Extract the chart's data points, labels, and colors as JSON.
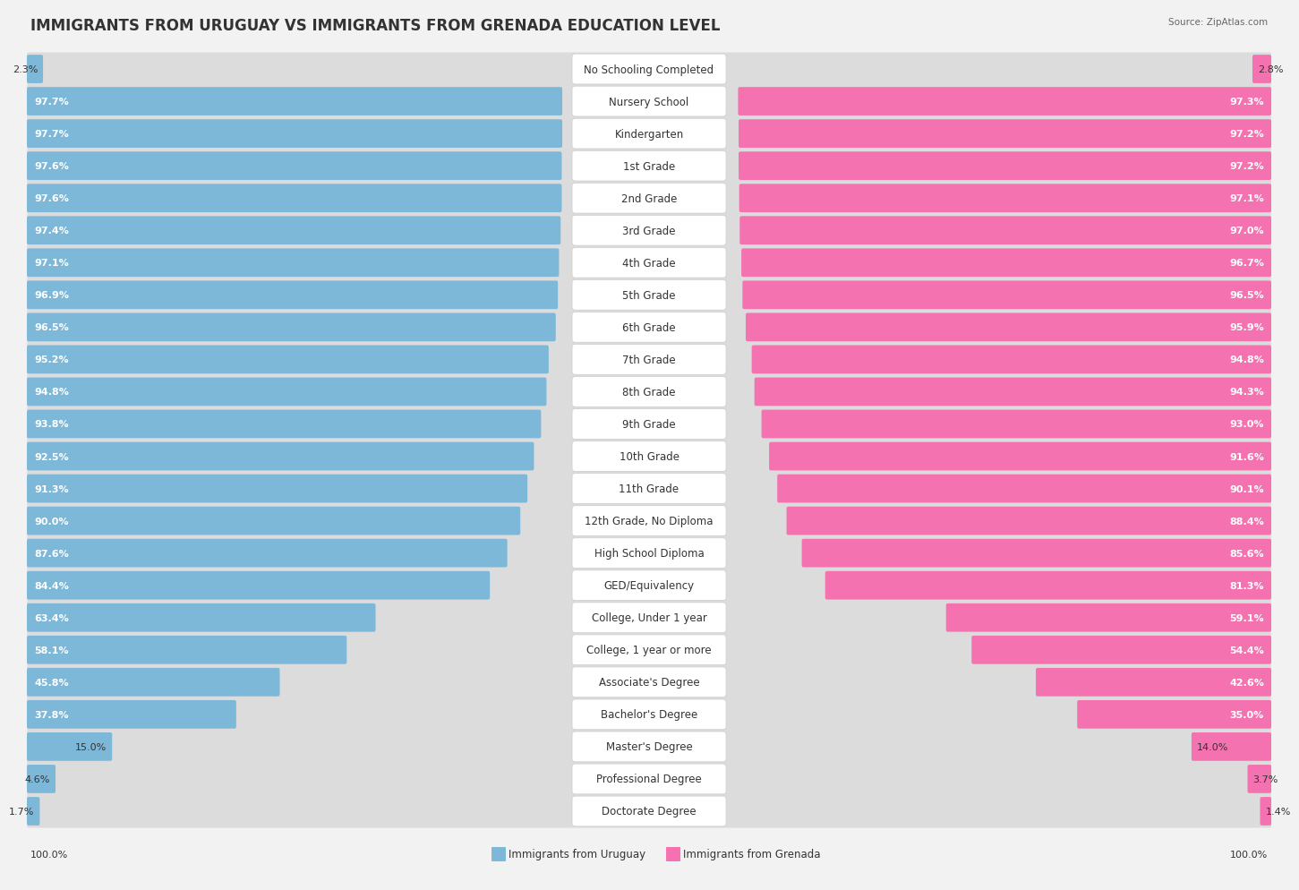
{
  "title": "IMMIGRANTS FROM URUGUAY VS IMMIGRANTS FROM GRENADA EDUCATION LEVEL",
  "source": "Source: ZipAtlas.com",
  "categories": [
    "No Schooling Completed",
    "Nursery School",
    "Kindergarten",
    "1st Grade",
    "2nd Grade",
    "3rd Grade",
    "4th Grade",
    "5th Grade",
    "6th Grade",
    "7th Grade",
    "8th Grade",
    "9th Grade",
    "10th Grade",
    "11th Grade",
    "12th Grade, No Diploma",
    "High School Diploma",
    "GED/Equivalency",
    "College, Under 1 year",
    "College, 1 year or more",
    "Associate's Degree",
    "Bachelor's Degree",
    "Master's Degree",
    "Professional Degree",
    "Doctorate Degree"
  ],
  "uruguay_values": [
    2.3,
    97.7,
    97.7,
    97.6,
    97.6,
    97.4,
    97.1,
    96.9,
    96.5,
    95.2,
    94.8,
    93.8,
    92.5,
    91.3,
    90.0,
    87.6,
    84.4,
    63.4,
    58.1,
    45.8,
    37.8,
    15.0,
    4.6,
    1.7
  ],
  "grenada_values": [
    2.8,
    97.3,
    97.2,
    97.2,
    97.1,
    97.0,
    96.7,
    96.5,
    95.9,
    94.8,
    94.3,
    93.0,
    91.6,
    90.1,
    88.4,
    85.6,
    81.3,
    59.1,
    54.4,
    42.6,
    35.0,
    14.0,
    3.7,
    1.4
  ],
  "uruguay_color": "#7db8d8",
  "grenada_color": "#f472b0",
  "bg_color": "#f2f2f2",
  "row_bg_color": "#e8e8e8",
  "bar_bg_white": "#ffffff",
  "title_fontsize": 12,
  "label_fontsize": 8,
  "category_fontsize": 8.5
}
